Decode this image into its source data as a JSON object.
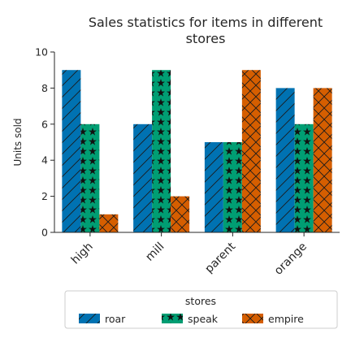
{
  "chart_data": {
    "type": "bar",
    "title_lines": [
      "Sales statistics for items in different",
      "stores"
    ],
    "xlabel": "",
    "ylabel": "Units sold",
    "categories": [
      "high",
      "mill",
      "parent",
      "orange"
    ],
    "ylim": [
      0,
      10
    ],
    "yticks": [
      "0",
      "2",
      "4",
      "6",
      "8",
      "10"
    ],
    "grid": false,
    "legend": {
      "title": "stores",
      "placement": "bottom"
    },
    "series": [
      {
        "name": "roar",
        "color": "#0072b2",
        "pattern": "diagonal-hatch",
        "values": [
          9,
          6,
          5,
          8
        ]
      },
      {
        "name": "speak",
        "color": "#009e73",
        "pattern": "stars",
        "values": [
          6,
          9,
          5,
          6
        ]
      },
      {
        "name": "empire",
        "color": "#d55e00",
        "pattern": "cross-hatch",
        "values": [
          1,
          2,
          9,
          8
        ]
      }
    ]
  }
}
